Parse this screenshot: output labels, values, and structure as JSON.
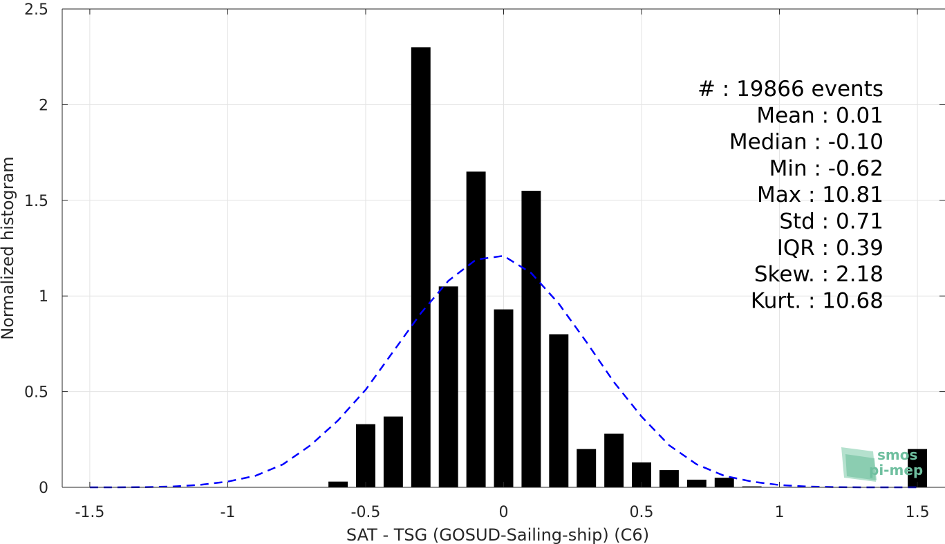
{
  "chart_data": {
    "type": "bar",
    "xlabel": "SAT - TSG (GOSUD-Sailing-ship) (C6)",
    "ylabel": "Normalized histogram",
    "xlim": [
      -1.6,
      1.6
    ],
    "ylim": [
      0,
      2.5
    ],
    "x_ticks": [
      -1.5,
      -1,
      -0.5,
      0,
      0.5,
      1,
      1.5
    ],
    "x_tick_labels": [
      "-1.5",
      "-1",
      "-0.5",
      "0",
      "0.5",
      "1",
      "1.5"
    ],
    "y_ticks": [
      0,
      0.5,
      1,
      1.5,
      2,
      2.5
    ],
    "y_tick_labels": [
      "0",
      "0.5",
      "1",
      "1.5",
      "2",
      "2.5"
    ],
    "grid": true,
    "bar_width": 0.07,
    "bar_color": "#000000",
    "bars": [
      {
        "x": -0.6,
        "y": 0.03
      },
      {
        "x": -0.5,
        "y": 0.33
      },
      {
        "x": -0.4,
        "y": 0.37
      },
      {
        "x": -0.3,
        "y": 2.3
      },
      {
        "x": -0.2,
        "y": 1.05
      },
      {
        "x": -0.1,
        "y": 1.65
      },
      {
        "x": 0.0,
        "y": 0.93
      },
      {
        "x": 0.1,
        "y": 1.55
      },
      {
        "x": 0.2,
        "y": 0.8
      },
      {
        "x": 0.3,
        "y": 0.2
      },
      {
        "x": 0.4,
        "y": 0.28
      },
      {
        "x": 0.5,
        "y": 0.13
      },
      {
        "x": 0.6,
        "y": 0.09
      },
      {
        "x": 0.7,
        "y": 0.04
      },
      {
        "x": 0.8,
        "y": 0.05
      },
      {
        "x": 0.9,
        "y": 0.005
      },
      {
        "x": 1.5,
        "y": 0.2
      }
    ],
    "fit_curve": {
      "style": "dashed",
      "color": "#0000ff",
      "points": [
        [
          -1.5,
          0.0
        ],
        [
          -1.4,
          0.0
        ],
        [
          -1.3,
          0.001
        ],
        [
          -1.2,
          0.004
        ],
        [
          -1.1,
          0.013
        ],
        [
          -1.0,
          0.03
        ],
        [
          -0.9,
          0.06
        ],
        [
          -0.8,
          0.12
        ],
        [
          -0.7,
          0.22
        ],
        [
          -0.6,
          0.35
        ],
        [
          -0.5,
          0.51
        ],
        [
          -0.4,
          0.71
        ],
        [
          -0.3,
          0.91
        ],
        [
          -0.2,
          1.08
        ],
        [
          -0.1,
          1.19
        ],
        [
          0.0,
          1.21
        ],
        [
          0.1,
          1.12
        ],
        [
          0.2,
          0.96
        ],
        [
          0.3,
          0.76
        ],
        [
          0.4,
          0.55
        ],
        [
          0.5,
          0.37
        ],
        [
          0.6,
          0.22
        ],
        [
          0.7,
          0.12
        ],
        [
          0.8,
          0.06
        ],
        [
          0.9,
          0.03
        ],
        [
          1.0,
          0.012
        ],
        [
          1.1,
          0.004
        ],
        [
          1.2,
          0.001
        ],
        [
          1.3,
          0.0
        ],
        [
          1.4,
          0.0
        ],
        [
          1.5,
          0.0
        ]
      ]
    },
    "stats": [
      {
        "label": "#  : 19866 events"
      },
      {
        "label": "Mean : 0.01"
      },
      {
        "label": "Median : -0.10"
      },
      {
        "label": "Min : -0.62"
      },
      {
        "label": "Max : 10.81"
      },
      {
        "label": "Std : 0.71"
      },
      {
        "label": "IQR : 0.39"
      },
      {
        "label": "Skew. : 2.18"
      },
      {
        "label": "Kurt. : 10.68"
      }
    ]
  },
  "logo": {
    "line1": "smos",
    "line2": "pi-mep",
    "color": "#6fbf9f"
  }
}
